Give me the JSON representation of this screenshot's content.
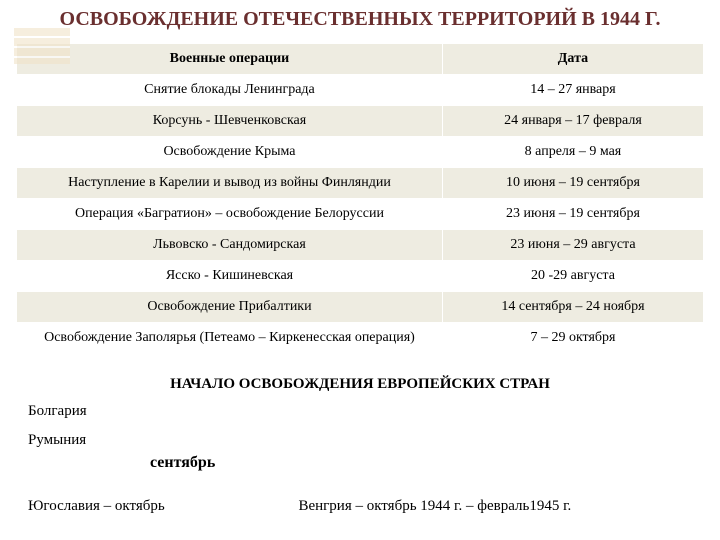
{
  "title": "ОСВОБОЖДЕНИЕ ОТЕЧЕСТВЕННЫХ ТЕРРИТОРИЙ В 1944 Г.",
  "table": {
    "headers": {
      "op": "Военные операции",
      "date": "Дата"
    },
    "rows": [
      {
        "op": "Снятие блокады Ленинграда",
        "date": "14 – 27 января"
      },
      {
        "op": "Корсунь - Шевченковская",
        "date": "24 января – 17 февраля"
      },
      {
        "op": "Освобождение Крыма",
        "date": "8 апреля – 9 мая"
      },
      {
        "op": "Наступление в Карелии и вывод из войны Финляндии",
        "date": "10 июня – 19 сентября"
      },
      {
        "op": "Операция «Багратион» – освобождение Белоруссии",
        "date": "23 июня – 19 сентября"
      },
      {
        "op": "Львовско - Сандомирская",
        "date": "23 июня – 29 августа"
      },
      {
        "op": "Ясско - Кишиневская",
        "date": "20 -29 августа"
      },
      {
        "op": "Освобождение Прибалтики",
        "date": "14 сентября – 24 ноября"
      },
      {
        "op": "Освобождение Заполярья (Петеамо – Киркенесская операция)",
        "date": "7 – 29 октября"
      }
    ]
  },
  "subtitle": "НАЧАЛО ОСВОБОЖДЕНИЯ ЕВРОПЕЙСКИХ СТРАН",
  "countries": {
    "bulgaria": "Болгария",
    "romania": "Румыния",
    "september": "сентябрь",
    "yugoslavia": "Югославия – октябрь",
    "hungary": "Венгрия – октябрь 1944 г. – февраль1945 г."
  },
  "colors": {
    "title": "#6a2f2f",
    "header_bg": "#eeece1",
    "row_alt_bg": "#eeece1"
  }
}
